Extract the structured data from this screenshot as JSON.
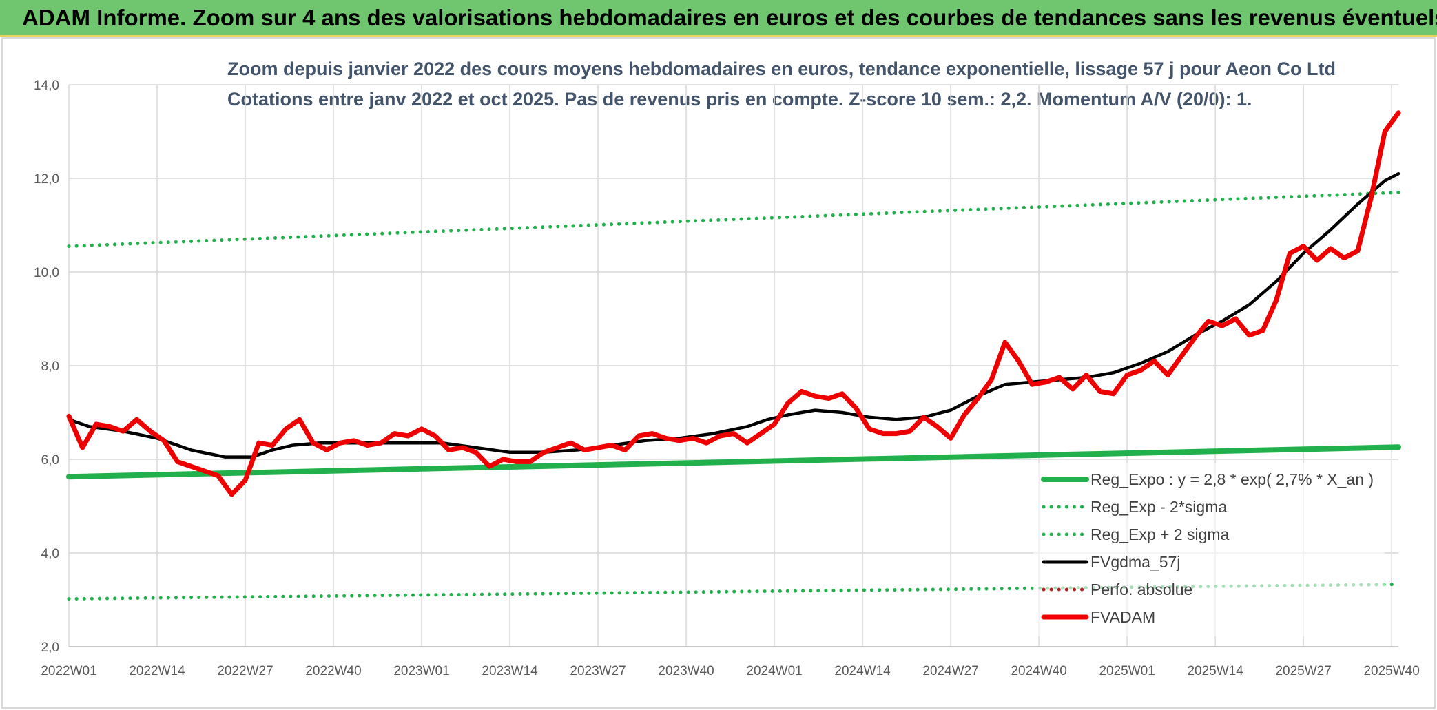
{
  "header": {
    "title": "ADAM Informe. Zoom sur 4 ans des valorisations hebdomadaires en euros et des courbes de tendances sans les revenus éventuels"
  },
  "chart_data": {
    "type": "line",
    "title_lines": [
      "Zoom depuis janvier 2022 des cours moyens hebdomadaires en euros, tendance exponentielle, lissage 57 j pour Aeon Co Ltd",
      "Cotations entre janv 2022 et oct 2025. Pas de revenus pris en compte. Z-score 10 sem.: 2,2. Momentum A/V (20/0): 1."
    ],
    "xlabel": "",
    "ylabel": "",
    "ylim": [
      2,
      14
    ],
    "yticks": [
      "2,0",
      "4,0",
      "6,0",
      "8,0",
      "10,0",
      "12,0",
      "14,0"
    ],
    "xticks": [
      "2022W01",
      "2022W14",
      "2022W27",
      "2022W40",
      "2023W01",
      "2023W14",
      "2023W27",
      "2023W40",
      "2024W01",
      "2024W14",
      "2024W27",
      "2024W40",
      "2025W01",
      "2025W14",
      "2025W27",
      "2025W40"
    ],
    "grid": "vertical and horizontal",
    "legend_position": "bottom-right",
    "week_range": [
      0,
      196
    ],
    "series": [
      {
        "name": "Reg_Expo : y = 2,8 * exp( 2,7% *  X_an )",
        "color": "#22b04c",
        "style": "solid-thick",
        "x": [
          0,
          196
        ],
        "values": [
          5.63,
          6.26
        ]
      },
      {
        "name": "Reg_Exp - 2*sigma",
        "color": "#22b04c",
        "style": "dotted",
        "x": [
          0,
          196
        ],
        "values": [
          3.02,
          3.33
        ]
      },
      {
        "name": "Reg_Exp + 2 sigma",
        "color": "#22b04c",
        "style": "dotted",
        "x": [
          0,
          196
        ],
        "values": [
          10.55,
          11.7
        ]
      },
      {
        "name": "FVgdma_57j",
        "color": "#000000",
        "style": "solid",
        "x": [
          0,
          3,
          8,
          13,
          18,
          23,
          27,
          30,
          33,
          37,
          41,
          45,
          50,
          55,
          60,
          65,
          70,
          75,
          80,
          85,
          90,
          95,
          100,
          103,
          106,
          110,
          114,
          118,
          122,
          126,
          130,
          134,
          138,
          142,
          146,
          150,
          154,
          158,
          162,
          166,
          170,
          174,
          178,
          182,
          186,
          190,
          194,
          196
        ],
        "values": [
          6.85,
          6.7,
          6.6,
          6.45,
          6.2,
          6.05,
          6.05,
          6.2,
          6.3,
          6.35,
          6.35,
          6.35,
          6.35,
          6.35,
          6.25,
          6.15,
          6.15,
          6.2,
          6.3,
          6.4,
          6.45,
          6.55,
          6.7,
          6.85,
          6.95,
          7.05,
          7.0,
          6.9,
          6.85,
          6.9,
          7.05,
          7.35,
          7.6,
          7.65,
          7.7,
          7.75,
          7.85,
          8.05,
          8.3,
          8.65,
          8.95,
          9.3,
          9.8,
          10.4,
          10.9,
          11.45,
          11.95,
          12.1
        ]
      },
      {
        "name": "Perfo. absolue",
        "color": "#b11f1f",
        "style": "dotted",
        "x": [],
        "values": []
      },
      {
        "name": "FVADAM",
        "color": "#ee0000",
        "style": "solid-thick",
        "x": [
          0,
          2,
          4,
          6,
          8,
          10,
          12,
          14,
          16,
          18,
          20,
          22,
          24,
          26,
          28,
          30,
          32,
          34,
          36,
          38,
          40,
          42,
          44,
          46,
          48,
          50,
          52,
          54,
          56,
          58,
          60,
          62,
          64,
          66,
          68,
          70,
          72,
          74,
          76,
          78,
          80,
          82,
          84,
          86,
          88,
          90,
          92,
          94,
          96,
          98,
          100,
          102,
          104,
          106,
          108,
          110,
          112,
          114,
          116,
          118,
          120,
          122,
          124,
          126,
          128,
          130,
          132,
          134,
          136,
          138,
          140,
          142,
          144,
          146,
          148,
          150,
          152,
          154,
          156,
          158,
          160,
          162,
          164,
          166,
          168,
          170,
          172,
          174,
          176,
          178,
          180,
          182,
          184,
          186,
          188,
          190,
          192,
          194,
          196
        ],
        "values": [
          6.92,
          6.25,
          6.75,
          6.7,
          6.6,
          6.85,
          6.6,
          6.4,
          5.95,
          5.85,
          5.75,
          5.65,
          5.25,
          5.55,
          6.35,
          6.3,
          6.65,
          6.85,
          6.35,
          6.2,
          6.35,
          6.4,
          6.3,
          6.35,
          6.55,
          6.5,
          6.65,
          6.5,
          6.2,
          6.25,
          6.15,
          5.85,
          6.0,
          5.95,
          5.95,
          6.15,
          6.25,
          6.35,
          6.2,
          6.25,
          6.3,
          6.2,
          6.5,
          6.55,
          6.45,
          6.4,
          6.45,
          6.35,
          6.5,
          6.55,
          6.35,
          6.55,
          6.75,
          7.2,
          7.45,
          7.35,
          7.3,
          7.4,
          7.1,
          6.65,
          6.55,
          6.55,
          6.6,
          6.9,
          6.7,
          6.45,
          6.95,
          7.3,
          7.7,
          8.5,
          8.1,
          7.6,
          7.65,
          7.75,
          7.5,
          7.8,
          7.45,
          7.4,
          7.8,
          7.9,
          8.1,
          7.8,
          8.2,
          8.6,
          8.95,
          8.85,
          9.0,
          8.65,
          8.75,
          9.4,
          10.4,
          10.55,
          10.25,
          10.5,
          10.3,
          10.45,
          11.6,
          13.0,
          13.4
        ]
      }
    ]
  }
}
